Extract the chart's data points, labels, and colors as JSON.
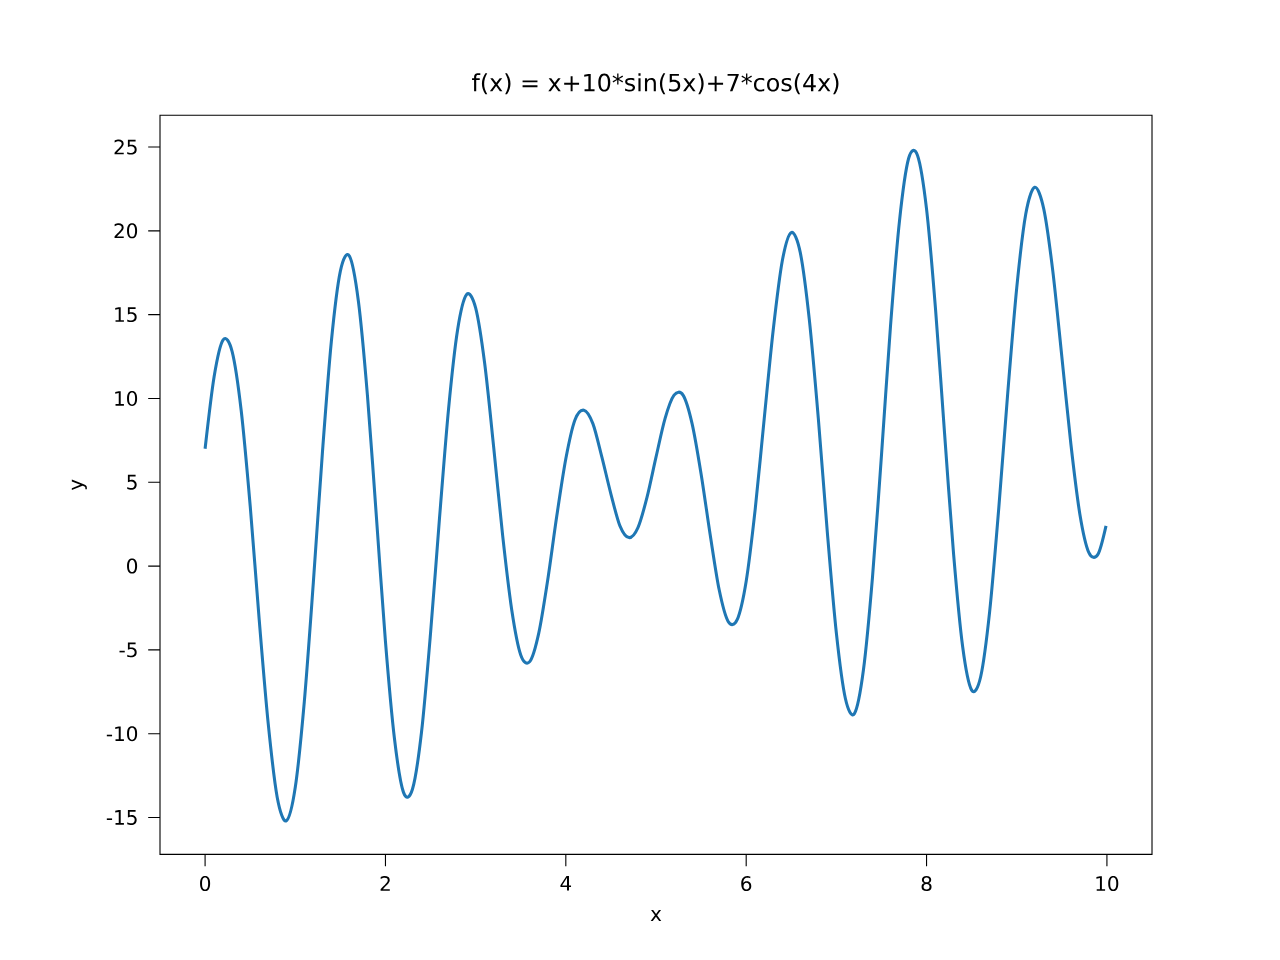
{
  "chart_data": {
    "type": "line",
    "title": "f(x) = x+10*sin(5x)+7*cos(4x)",
    "xlabel": "x",
    "ylabel": "y",
    "xlim": [
      -0.5,
      10.5
    ],
    "ylim": [
      -17.2,
      26.9
    ],
    "xticks": [
      0,
      2,
      4,
      6,
      8,
      10
    ],
    "yticks": [
      -15,
      -10,
      -5,
      0,
      5,
      10,
      15,
      20,
      25
    ],
    "marker": "none",
    "line_style": "solid",
    "x": [
      0.0,
      0.1,
      0.2,
      0.3,
      0.4,
      0.5,
      0.6,
      0.7,
      0.8,
      0.9,
      1.0,
      1.1,
      1.2,
      1.3,
      1.4,
      1.5,
      1.6,
      1.7,
      1.8,
      1.9,
      2.0,
      2.1,
      2.2,
      2.3,
      2.4,
      2.5,
      2.6,
      2.7,
      2.8,
      2.9,
      3.0,
      3.1,
      3.2,
      3.3,
      3.4,
      3.5,
      3.6,
      3.7,
      3.8,
      3.9,
      4.0,
      4.1,
      4.2,
      4.3,
      4.4,
      4.5,
      4.6,
      4.7,
      4.8,
      4.9,
      5.0,
      5.1,
      5.2,
      5.3,
      5.4,
      5.5,
      5.6,
      5.7,
      5.8,
      5.9,
      6.0,
      6.1,
      6.2,
      6.3,
      6.4,
      6.5,
      6.6,
      6.7,
      6.8,
      6.9,
      7.0,
      7.1,
      7.2,
      7.3,
      7.4,
      7.5,
      7.6,
      7.7,
      7.8,
      7.9,
      8.0,
      8.1,
      8.2,
      8.3,
      8.4,
      8.5,
      8.6,
      8.7,
      8.8,
      8.9,
      9.0,
      9.1,
      9.2,
      9.3,
      9.4,
      9.5,
      9.6,
      9.7,
      9.8,
      9.9,
      9.99
    ],
    "series": [
      {
        "color": "#1f77b4",
        "values": [
          7.0,
          11.3,
          13.5,
          12.8,
          9.3,
          3.6,
          -3.2,
          -9.4,
          -13.8,
          -15.2,
          -13.2,
          -8.1,
          -1.0,
          6.7,
          13.4,
          17.6,
          18.5,
          15.8,
          10.2,
          2.9,
          -4.5,
          -10.3,
          -13.5,
          -13.3,
          -9.9,
          -4.0,
          2.9,
          9.4,
          14.1,
          16.2,
          15.4,
          12.1,
          7.1,
          1.8,
          -2.6,
          -5.3,
          -5.7,
          -4.0,
          -0.8,
          3.0,
          6.4,
          8.7,
          9.3,
          8.5,
          6.5,
          4.3,
          2.4,
          1.7,
          2.3,
          4.1,
          6.5,
          8.8,
          10.2,
          10.2,
          8.5,
          5.5,
          1.9,
          -1.4,
          -3.3,
          -3.2,
          -0.9,
          3.4,
          8.8,
          14.1,
          18.2,
          19.9,
          18.7,
          14.7,
          8.8,
          2.0,
          -4.0,
          -7.9,
          -8.8,
          -6.2,
          -0.7,
          6.6,
          14.3,
          20.6,
          24.3,
          24.5,
          21.3,
          15.3,
          7.9,
          0.7,
          -4.8,
          -7.4,
          -6.6,
          -2.7,
          3.4,
          10.3,
          16.6,
          21.0,
          22.6,
          21.3,
          17.6,
          12.5,
          7.3,
          3.1,
          0.8,
          0.7,
          2.4
        ]
      }
    ]
  }
}
